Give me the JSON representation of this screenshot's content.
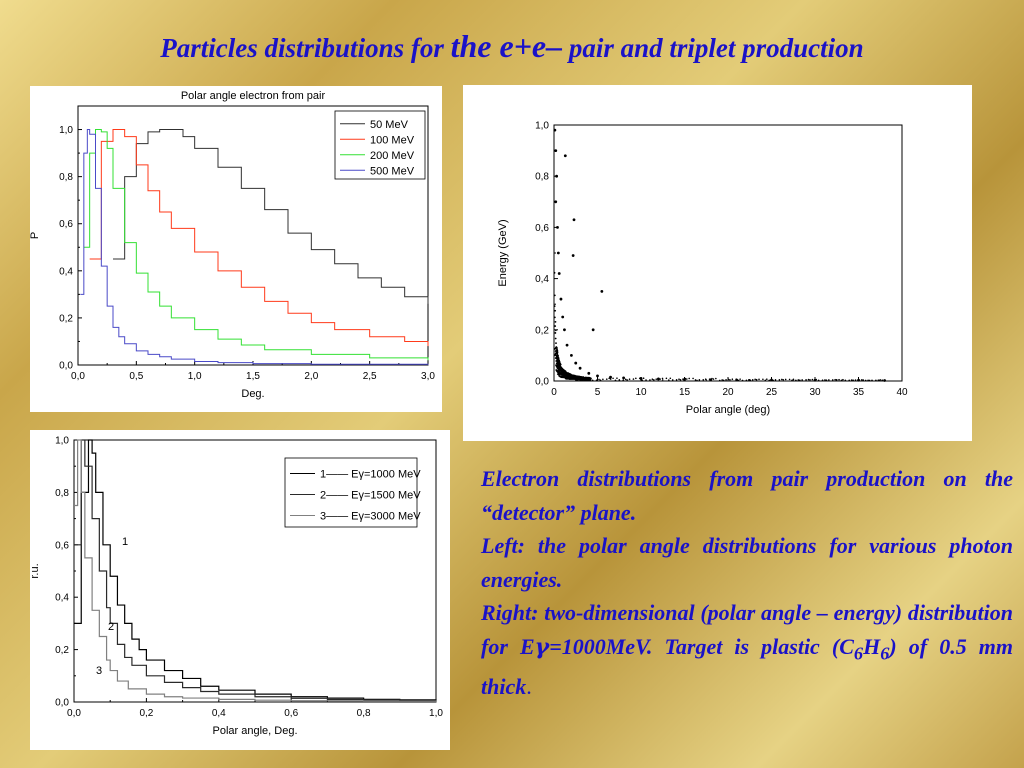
{
  "slide": {
    "title_part1": "Particles distributions for ",
    "title_part2": "the e+e–",
    "title_part3": " pair and triplet production",
    "caption_line1": "Electron distributions from pair production on the “detector” plane.",
    "caption_line2": "Left: the polar angle distributions for various photon energies.",
    "caption_line3a": "Right: two-dimensional (polar angle – energy) distribution for E",
    "caption_gamma": "γ",
    "caption_line3b": "=1000MeV",
    "caption_line3c": ". Target is plastic (C",
    "caption_sub1": "6",
    "caption_h": "H",
    "caption_sub2": "6",
    "caption_line3d": ") of 0.5 mm thick",
    "caption_end": "."
  },
  "chart_data": [
    {
      "type": "line",
      "title": "Polar angle electron from pair",
      "xlabel": "Deg.",
      "ylabel": "P",
      "xlim": [
        0,
        3.0
      ],
      "ylim": [
        0,
        1.1
      ],
      "xticks": [
        "0,0",
        "0,5",
        "1,0",
        "1,5",
        "2,0",
        "2,5",
        "3,0"
      ],
      "yticks": [
        "0,0",
        "0,2",
        "0,4",
        "0,6",
        "0,8",
        "1,0"
      ],
      "legend": "top-right",
      "grid": false,
      "series": [
        {
          "name": "50 MeV",
          "color": "#303030",
          "x": [
            0.3,
            0.4,
            0.5,
            0.6,
            0.7,
            0.8,
            0.9,
            1.0,
            1.2,
            1.4,
            1.6,
            1.8,
            2.0,
            2.2,
            2.4,
            2.6,
            2.8,
            3.0
          ],
          "y": [
            0.45,
            0.8,
            0.94,
            0.99,
            1.0,
            1.0,
            0.97,
            0.92,
            0.84,
            0.75,
            0.66,
            0.56,
            0.49,
            0.43,
            0.37,
            0.33,
            0.29,
            0.26
          ]
        },
        {
          "name": "100 MeV",
          "color": "#ff3a1a",
          "x": [
            0.1,
            0.2,
            0.3,
            0.4,
            0.5,
            0.6,
            0.7,
            0.8,
            1.0,
            1.2,
            1.4,
            1.6,
            1.8,
            2.0,
            2.2,
            2.5,
            2.8,
            3.0
          ],
          "y": [
            0.45,
            0.95,
            1.0,
            0.97,
            0.85,
            0.74,
            0.65,
            0.58,
            0.48,
            0.4,
            0.33,
            0.27,
            0.22,
            0.18,
            0.15,
            0.12,
            0.1,
            0.08
          ]
        },
        {
          "name": "200 MeV",
          "color": "#33e033",
          "x": [
            0.05,
            0.1,
            0.15,
            0.2,
            0.25,
            0.3,
            0.4,
            0.5,
            0.6,
            0.7,
            0.8,
            1.0,
            1.2,
            1.4,
            1.6,
            2.0,
            2.5,
            3.0
          ],
          "y": [
            0.5,
            0.9,
            1.0,
            0.99,
            0.92,
            0.75,
            0.52,
            0.39,
            0.31,
            0.25,
            0.2,
            0.15,
            0.11,
            0.085,
            0.065,
            0.045,
            0.03,
            0.02
          ]
        },
        {
          "name": "500 MeV",
          "color": "#4a4ac8",
          "x": [
            0.02,
            0.05,
            0.08,
            0.1,
            0.15,
            0.2,
            0.25,
            0.3,
            0.35,
            0.4,
            0.5,
            0.6,
            0.7,
            0.8,
            1.0,
            1.2,
            1.5,
            2.0,
            3.0
          ],
          "y": [
            0.3,
            0.9,
            1.0,
            0.98,
            0.75,
            0.42,
            0.25,
            0.16,
            0.12,
            0.09,
            0.06,
            0.045,
            0.035,
            0.025,
            0.015,
            0.01,
            0.006,
            0.003,
            0.001
          ]
        }
      ]
    },
    {
      "type": "scatter",
      "xlabel": "Polar angle (deg)",
      "ylabel": "Energy (GeV)",
      "xlim": [
        0,
        40
      ],
      "ylim": [
        0,
        1.0
      ],
      "xticks": [
        "0",
        "5",
        "10",
        "15",
        "20",
        "25",
        "30",
        "35",
        "40"
      ],
      "yticks": [
        "0,0",
        "0,2",
        "0,4",
        "0,6",
        "0,8",
        "1,0"
      ],
      "grid": false,
      "series": [
        {
          "name": "",
          "color": "#000000",
          "x": [
            0.1,
            0.2,
            0.3,
            0.2,
            0.4,
            0.5,
            0.6,
            0.8,
            1.0,
            1.2,
            1.5,
            2.0,
            2.5,
            3.0,
            4.0,
            5.0,
            6.5,
            8.0,
            10.0,
            12.0,
            15.0,
            18.0,
            21.0,
            25.0,
            30.0,
            35.0,
            38.0,
            1.3,
            2.3,
            2.2,
            4.5,
            5.5
          ],
          "y": [
            0.98,
            0.9,
            0.8,
            0.7,
            0.6,
            0.5,
            0.42,
            0.32,
            0.25,
            0.2,
            0.14,
            0.1,
            0.07,
            0.05,
            0.03,
            0.02,
            0.015,
            0.012,
            0.01,
            0.008,
            0.006,
            0.005,
            0.004,
            0.004,
            0.003,
            0.003,
            0.002,
            0.88,
            0.63,
            0.49,
            0.2,
            0.35
          ]
        }
      ]
    },
    {
      "type": "line",
      "xlabel": "Polar angle, Deg.",
      "ylabel": "r.u.",
      "xlim": [
        0,
        1.0
      ],
      "ylim": [
        0,
        1.0
      ],
      "xticks": [
        "0,0",
        "0,2",
        "0,4",
        "0,6",
        "0,8",
        "1,0"
      ],
      "yticks": [
        "0,0",
        "0,2",
        "0,4",
        "0,6",
        "0,8",
        "1,0"
      ],
      "legend": "top-right",
      "grid": false,
      "annotations": [
        "1",
        "2",
        "3"
      ],
      "series": [
        {
          "name": "1—— Eγ=1000 MeV",
          "label": "1",
          "color": "#000000",
          "x": [
            0.0,
            0.02,
            0.04,
            0.05,
            0.06,
            0.08,
            0.1,
            0.12,
            0.14,
            0.16,
            0.18,
            0.2,
            0.25,
            0.3,
            0.35,
            0.4,
            0.5,
            0.6,
            0.7,
            0.8,
            0.9,
            1.0
          ],
          "y": [
            0.3,
            0.8,
            1.0,
            0.95,
            0.8,
            0.6,
            0.48,
            0.37,
            0.3,
            0.24,
            0.2,
            0.16,
            0.12,
            0.09,
            0.06,
            0.045,
            0.03,
            0.02,
            0.015,
            0.01,
            0.008,
            0.006
          ]
        },
        {
          "name": "2—— Eγ=1500 MeV",
          "label": "2",
          "color": "#2a2a2a",
          "x": [
            0.0,
            0.02,
            0.03,
            0.05,
            0.07,
            0.09,
            0.1,
            0.12,
            0.14,
            0.16,
            0.2,
            0.25,
            0.3,
            0.35,
            0.4,
            0.5,
            0.6,
            0.7,
            0.8,
            0.9,
            1.0
          ],
          "y": [
            0.6,
            1.0,
            0.9,
            0.7,
            0.5,
            0.36,
            0.3,
            0.22,
            0.17,
            0.14,
            0.1,
            0.075,
            0.055,
            0.04,
            0.03,
            0.02,
            0.014,
            0.01,
            0.008,
            0.006,
            0.005
          ]
        },
        {
          "name": "3—— Eγ=3000 MeV",
          "label": "3",
          "color": "#808080",
          "x": [
            0.0,
            0.01,
            0.02,
            0.03,
            0.05,
            0.07,
            0.09,
            0.1,
            0.12,
            0.15,
            0.2,
            0.25,
            0.3,
            0.4,
            0.5,
            0.6,
            0.8,
            1.0
          ],
          "y": [
            0.75,
            1.0,
            0.8,
            0.55,
            0.35,
            0.25,
            0.16,
            0.12,
            0.08,
            0.05,
            0.03,
            0.02,
            0.015,
            0.01,
            0.007,
            0.005,
            0.003,
            0.002
          ]
        }
      ]
    }
  ]
}
